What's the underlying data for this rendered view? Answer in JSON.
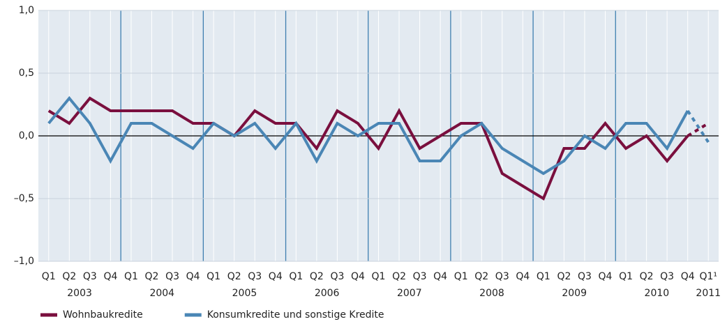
{
  "chart_data": {
    "type": "line",
    "categories": [
      "Q1",
      "Q2",
      "Q3",
      "Q4",
      "Q1",
      "Q2",
      "Q3",
      "Q4",
      "Q1",
      "Q2",
      "Q3",
      "Q4",
      "Q1",
      "Q2",
      "Q3",
      "Q4",
      "Q1",
      "Q2",
      "Q3",
      "Q4",
      "Q1",
      "Q2",
      "Q3",
      "Q4",
      "Q1",
      "Q2",
      "Q3",
      "Q4",
      "Q1",
      "Q2",
      "Q3",
      "Q4",
      "Q1¹"
    ],
    "year_labels": [
      "2003",
      "2004",
      "2005",
      "2006",
      "2007",
      "2008",
      "2009",
      "2010",
      "2011"
    ],
    "series": [
      {
        "name": "Wohnbaukredite",
        "color": "#7a0f3e",
        "values": [
          0.2,
          0.1,
          0.3,
          0.2,
          0.2,
          0.2,
          0.2,
          0.1,
          0.1,
          0.0,
          0.2,
          0.1,
          0.1,
          -0.1,
          0.2,
          0.1,
          -0.1,
          0.2,
          -0.1,
          0.0,
          0.1,
          0.1,
          -0.3,
          -0.4,
          -0.5,
          -0.1,
          -0.1,
          0.1,
          -0.1,
          0.0,
          -0.2,
          0.0,
          0.1
        ]
      },
      {
        "name": "Konsumkredite und sonstige Kredite",
        "color": "#4a86b5",
        "values": [
          0.1,
          0.3,
          0.1,
          -0.2,
          0.1,
          0.1,
          0.0,
          -0.1,
          0.1,
          0.0,
          0.1,
          -0.1,
          0.1,
          -0.2,
          0.1,
          0.0,
          0.1,
          0.1,
          -0.2,
          -0.2,
          0.0,
          0.1,
          -0.1,
          -0.2,
          -0.3,
          -0.2,
          0.0,
          -0.1,
          0.1,
          0.1,
          -0.1,
          0.2,
          -0.05
        ]
      }
    ],
    "ylim": [
      -1.0,
      1.0
    ],
    "yticks": [
      {
        "value": -1.0,
        "label": "–1,0"
      },
      {
        "value": -0.5,
        "label": "–0,5"
      },
      {
        "value": 0,
        "label": "0,0"
      },
      {
        "value": 0.5,
        "label": "0,5"
      },
      {
        "value": 1.0,
        "label": "1,0"
      }
    ],
    "grid": true,
    "last_segment_dashed": true,
    "legend": "bottom-left"
  }
}
